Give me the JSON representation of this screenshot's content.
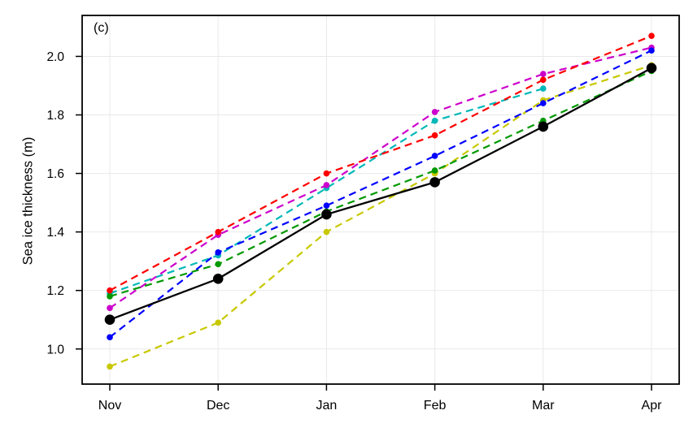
{
  "figure": {
    "panel_label": "(c)"
  },
  "chart_data": {
    "type": "line",
    "title": "",
    "annotation": "(c)",
    "xlabel": "",
    "ylabel": "Sea ice thickness (m)",
    "categories": [
      "Nov",
      "Dec",
      "Jan",
      "Feb",
      "Mar",
      "Apr"
    ],
    "yticks": [
      1.0,
      1.2,
      1.4,
      1.6,
      1.8,
      2.0
    ],
    "ytick_labels": [
      "1.0",
      "1.2",
      "1.4",
      "1.6",
      "1.8",
      "2.0"
    ],
    "ylim": [
      0.88,
      2.14
    ],
    "grid": true,
    "grid_color": "#e9e9e9",
    "axis_color": "#000000",
    "legend_position": "none",
    "series": [
      {
        "name": "series-yellow",
        "color": "#c8c800",
        "line_style": "dashed",
        "marker": "circle",
        "marker_radius": 3.8,
        "values": [
          0.94,
          1.09,
          1.4,
          1.6,
          1.85,
          1.97
        ]
      },
      {
        "name": "series-cyan",
        "color": "#00b8b8",
        "line_style": "dashed",
        "marker": "circle",
        "marker_radius": 3.8,
        "values": [
          1.19,
          1.32,
          1.55,
          1.78,
          1.89,
          null
        ]
      },
      {
        "name": "series-magenta",
        "color": "#cc00cc",
        "line_style": "dashed",
        "marker": "circle",
        "marker_radius": 3.8,
        "values": [
          1.14,
          1.39,
          1.56,
          1.81,
          1.94,
          2.03
        ]
      },
      {
        "name": "series-green",
        "color": "#009900",
        "line_style": "dashed",
        "marker": "circle",
        "marker_radius": 3.8,
        "values": [
          1.18,
          1.29,
          1.47,
          1.61,
          1.78,
          1.95
        ]
      },
      {
        "name": "series-blue",
        "color": "#0000ff",
        "line_style": "dashed",
        "marker": "circle",
        "marker_radius": 3.8,
        "values": [
          1.04,
          1.33,
          1.49,
          1.66,
          1.84,
          2.02
        ]
      },
      {
        "name": "series-red",
        "color": "#ff0000",
        "line_style": "dashed",
        "marker": "circle",
        "marker_radius": 3.8,
        "values": [
          1.2,
          1.4,
          1.6,
          1.73,
          1.92,
          2.07
        ]
      },
      {
        "name": "series-black",
        "color": "#000000",
        "line_style": "solid",
        "marker": "circle",
        "marker_radius": 6.3,
        "values": [
          1.1,
          1.24,
          1.46,
          1.57,
          1.76,
          1.96
        ]
      }
    ]
  }
}
